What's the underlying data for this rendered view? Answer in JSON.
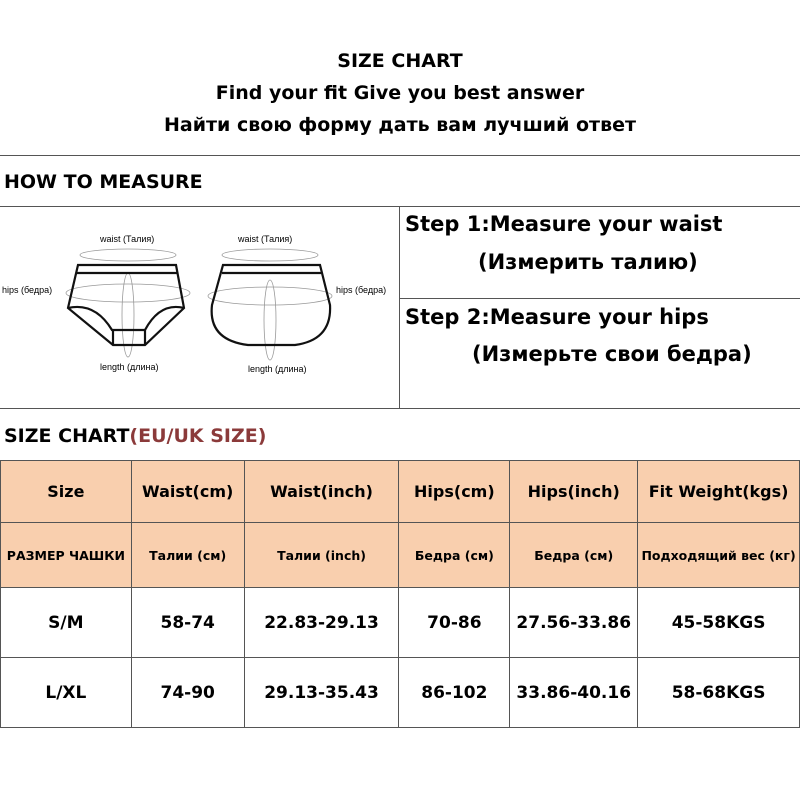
{
  "header": {
    "title": "SIZE CHART",
    "subtitle_en": "Find your fit Give you best answer",
    "subtitle_ru": "Найти свою форму дать вам лучший ответ"
  },
  "measure": {
    "heading": "HOW TO MEASURE",
    "diagram_labels": {
      "waist": "waist (Талия)",
      "hips": "hips (бедра)",
      "length": "length (длина)"
    },
    "step1": "Step 1:Measure your waist",
    "step1_ru": "(Измерить талию)",
    "step2": "Step 2:Measure your hips",
    "step2_ru": "(Измерьте свои бедра)"
  },
  "chart": {
    "heading": "SIZE CHART",
    "heading_accent": "(EU/UK SIZE)",
    "accent_color": "#8b3a3a",
    "header_bg": "#f9cfae",
    "columns": [
      "Size",
      "Waist(cm)",
      "Waist(inch)",
      "Hips(cm)",
      "Hips(inch)",
      "Fit  Weight(kgs)"
    ],
    "columns_ru": [
      "РАЗМЕР ЧАШКИ",
      "Талии (см)",
      "Талии (inch)",
      "Бедра (см)",
      "Бедра (см)",
      "Подходящий вес (кг)"
    ],
    "rows": [
      [
        "S/M",
        "58-74",
        "22.83-29.13",
        "70-86",
        "27.56-33.86",
        "45-58KGS"
      ],
      [
        "L/XL",
        "74-90",
        "29.13-35.43",
        "86-102",
        "33.86-40.16",
        "58-68KGS"
      ]
    ]
  }
}
